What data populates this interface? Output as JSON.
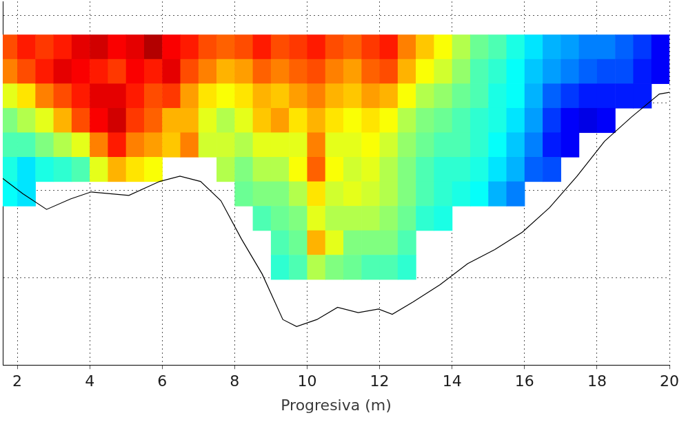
{
  "chart_data": {
    "type": "heatmap",
    "x_label": "Progresiva (m)",
    "xlim": [
      1.6,
      20
    ],
    "xticks": [
      2,
      4,
      6,
      8,
      10,
      12,
      14,
      16,
      18,
      20
    ],
    "ylim": [
      -2,
      0.08
    ],
    "yticks": [
      -2,
      -1.5,
      -1,
      -0.5,
      0
    ],
    "grid": true,
    "tick_labels": "x",
    "cells": {
      "range": [
        0,
        1
      ],
      "x_edges": [
        1.5,
        2,
        2.5,
        3,
        3.5,
        4,
        4.5,
        5,
        5.5,
        6,
        6.5,
        7,
        7.5,
        8,
        8.5,
        9,
        9.5,
        10,
        10.5,
        11,
        11.5,
        12,
        12.5,
        13,
        13.5,
        14,
        14.5,
        15,
        15.5,
        16,
        16.5,
        17,
        17.5,
        18,
        18.5,
        19,
        19.5,
        20
      ],
      "y_edges": [
        -0.11,
        -0.25,
        -0.39,
        -0.53,
        -0.67,
        -0.81,
        -0.95,
        -1.09,
        -1.23,
        -1.37,
        -1.51
      ],
      "values_by_column": [
        [
          0.8,
          0.75,
          0.6,
          0.5,
          0.45,
          0.4,
          0.38,
          null,
          null,
          null
        ],
        [
          0.85,
          0.8,
          0.65,
          0.55,
          0.45,
          0.35,
          0.35,
          null,
          null,
          null
        ],
        [
          0.82,
          0.85,
          0.75,
          0.6,
          0.5,
          0.4,
          null,
          null,
          null,
          null
        ],
        [
          0.85,
          0.9,
          0.8,
          0.7,
          0.55,
          0.42,
          null,
          null,
          null,
          null
        ],
        [
          0.9,
          0.88,
          0.85,
          0.8,
          0.6,
          0.45,
          null,
          null,
          null,
          null
        ],
        [
          0.92,
          0.85,
          0.9,
          0.88,
          0.75,
          0.6,
          null,
          null,
          null,
          null
        ],
        [
          0.88,
          0.82,
          0.9,
          0.92,
          0.85,
          0.7,
          null,
          null,
          null,
          null
        ],
        [
          0.9,
          0.88,
          0.85,
          0.82,
          0.75,
          0.65,
          null,
          null,
          null,
          null
        ],
        [
          0.95,
          0.85,
          0.8,
          0.78,
          0.72,
          0.62,
          null,
          null,
          null,
          null
        ],
        [
          0.88,
          0.9,
          0.82,
          0.7,
          0.68,
          null,
          null,
          null,
          null,
          null
        ],
        [
          0.85,
          0.8,
          0.72,
          0.7,
          0.75,
          null,
          null,
          null,
          null,
          null
        ],
        [
          0.8,
          0.75,
          0.65,
          0.6,
          0.58,
          null,
          null,
          null,
          null,
          null
        ],
        [
          0.78,
          0.7,
          0.62,
          0.55,
          0.58,
          0.55,
          null,
          null,
          null,
          null
        ],
        [
          0.8,
          0.72,
          0.65,
          0.6,
          0.55,
          0.5,
          0.48,
          null,
          null,
          null
        ],
        [
          0.85,
          0.78,
          0.7,
          0.68,
          0.6,
          0.55,
          0.5,
          0.45,
          null,
          null
        ],
        [
          0.8,
          0.75,
          0.68,
          0.72,
          0.6,
          0.55,
          0.5,
          0.48,
          0.45,
          0.42
        ],
        [
          0.82,
          0.78,
          0.72,
          0.65,
          0.6,
          0.62,
          0.55,
          0.5,
          0.48,
          0.45
        ],
        [
          0.85,
          0.8,
          0.75,
          0.7,
          0.75,
          0.78,
          0.65,
          0.6,
          0.7,
          0.55
        ],
        [
          0.8,
          0.75,
          0.7,
          0.65,
          0.6,
          0.62,
          0.58,
          0.55,
          0.6,
          0.5
        ],
        [
          0.78,
          0.72,
          0.68,
          0.62,
          0.6,
          0.58,
          0.6,
          0.55,
          0.5,
          0.48
        ],
        [
          0.82,
          0.78,
          0.72,
          0.65,
          0.62,
          0.6,
          0.58,
          0.55,
          0.5,
          0.45
        ],
        [
          0.85,
          0.8,
          0.7,
          0.62,
          0.58,
          0.55,
          0.55,
          0.52,
          0.5,
          0.45
        ],
        [
          0.75,
          0.7,
          0.62,
          0.55,
          0.52,
          0.5,
          0.5,
          0.48,
          0.45,
          0.42
        ],
        [
          0.68,
          0.62,
          0.55,
          0.5,
          0.48,
          0.45,
          0.45,
          0.42,
          null,
          null
        ],
        [
          0.62,
          0.58,
          0.52,
          0.48,
          0.45,
          0.42,
          0.42,
          0.4,
          null,
          null
        ],
        [
          0.55,
          0.52,
          0.48,
          0.45,
          0.45,
          0.42,
          0.4,
          null,
          null,
          null
        ],
        [
          0.48,
          0.45,
          0.45,
          0.42,
          0.42,
          0.4,
          0.38,
          null,
          null,
          null
        ],
        [
          0.45,
          0.42,
          0.4,
          0.4,
          0.38,
          0.35,
          0.3,
          null,
          null,
          null
        ],
        [
          0.4,
          0.38,
          0.38,
          0.35,
          0.32,
          0.3,
          0.25,
          null,
          null,
          null
        ],
        [
          0.35,
          0.32,
          0.3,
          0.28,
          0.25,
          0.22,
          null,
          null,
          null,
          null
        ],
        [
          0.3,
          0.28,
          0.22,
          0.18,
          0.15,
          0.2,
          null,
          null,
          null,
          null
        ],
        [
          0.28,
          0.25,
          0.18,
          0.12,
          0.12,
          null,
          null,
          null,
          null,
          null
        ],
        [
          0.25,
          0.22,
          0.15,
          0.1,
          null,
          null,
          null,
          null,
          null,
          null
        ],
        [
          0.25,
          0.2,
          0.15,
          0.12,
          null,
          null,
          null,
          null,
          null,
          null
        ],
        [
          0.22,
          0.2,
          0.15,
          null,
          null,
          null,
          null,
          null,
          null,
          null
        ],
        [
          0.18,
          0.15,
          0.15,
          null,
          null,
          null,
          null,
          null,
          null,
          null
        ],
        [
          0.12,
          0.12,
          null,
          null,
          null,
          null,
          null,
          null,
          null,
          null
        ]
      ]
    },
    "bed_profile": {
      "color": "#000000",
      "x": [
        1.58,
        2.15,
        2.81,
        3.47,
        4.04,
        5.08,
        5.93,
        6.49,
        7.06,
        7.62,
        8.19,
        8.76,
        9.33,
        9.71,
        10.27,
        10.84,
        11.41,
        11.97,
        12.35,
        12.92,
        13.67,
        14.43,
        15.18,
        15.94,
        16.69,
        17.45,
        18.21,
        18.96,
        19.72,
        20.0
      ],
      "y": [
        -0.93,
        -1.02,
        -1.11,
        -1.05,
        -1.01,
        -1.03,
        -0.95,
        -0.92,
        -0.95,
        -1.06,
        -1.28,
        -1.48,
        -1.74,
        -1.78,
        -1.74,
        -1.67,
        -1.7,
        -1.68,
        -1.71,
        -1.64,
        -1.54,
        -1.42,
        -1.34,
        -1.24,
        -1.1,
        -0.92,
        -0.72,
        -0.58,
        -0.45,
        -0.44
      ]
    }
  }
}
